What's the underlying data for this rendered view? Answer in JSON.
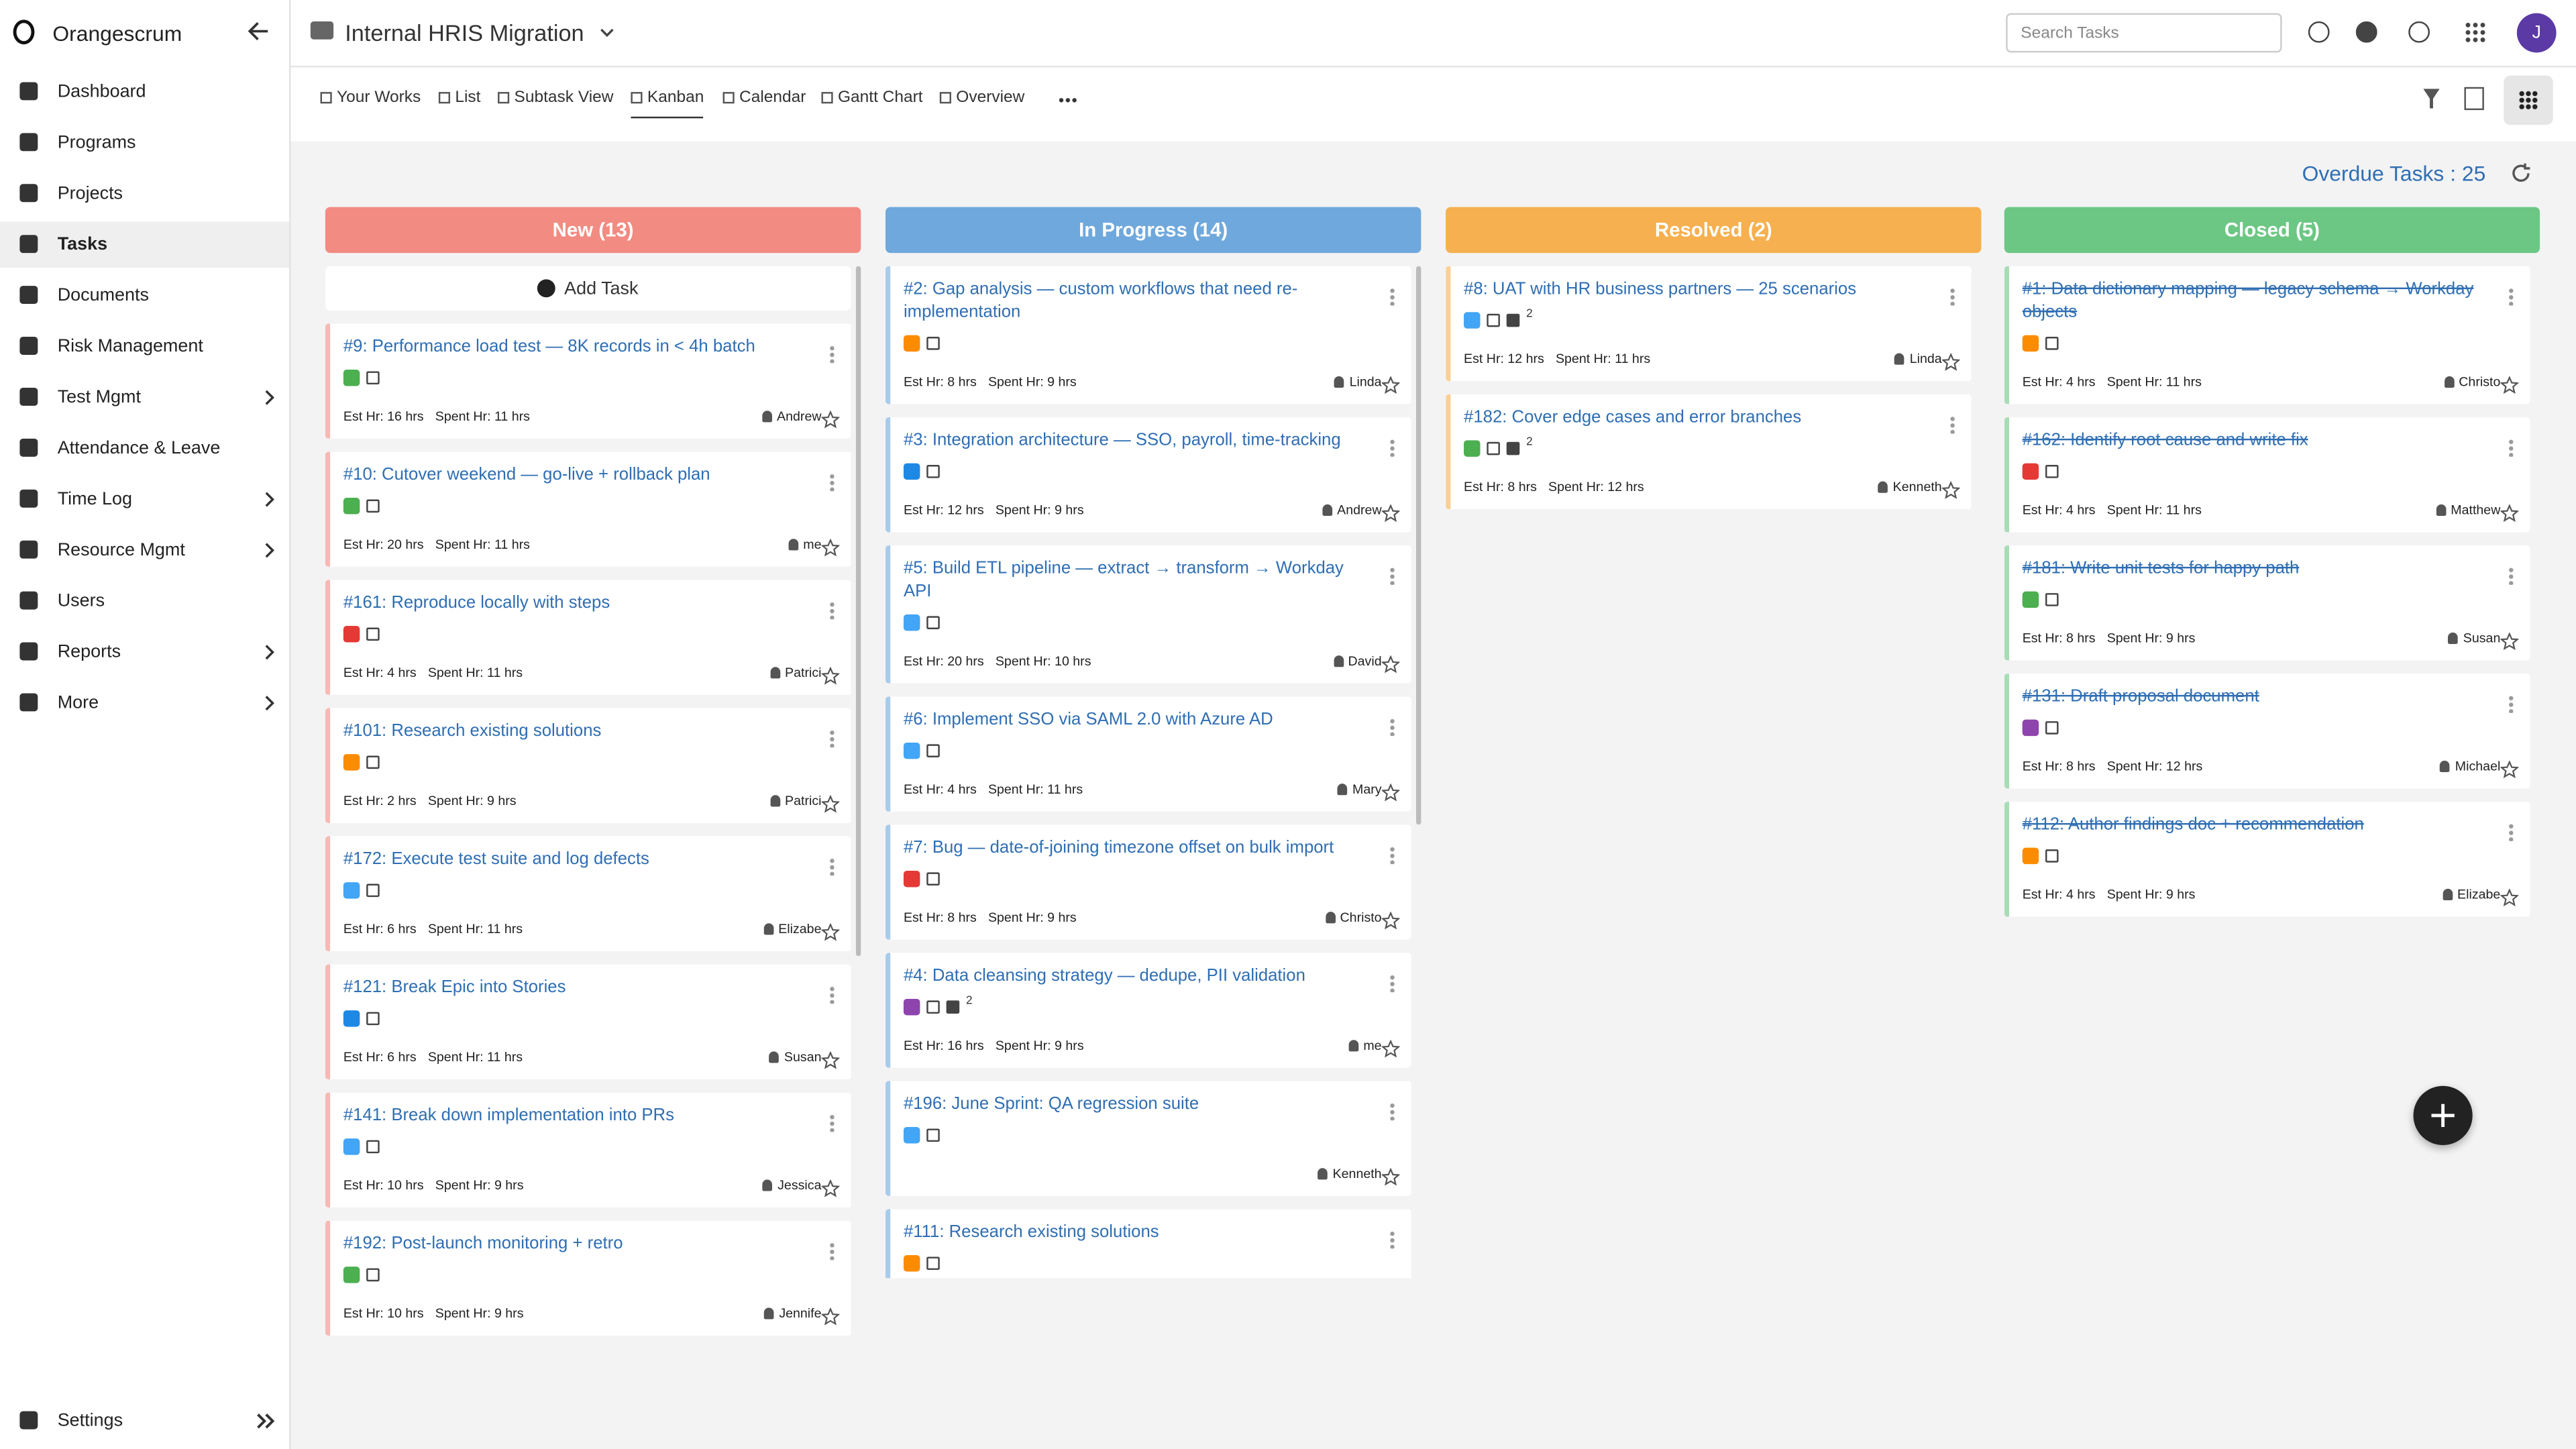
{
  "app": {
    "brand": "Orangescrum",
    "avatar": "J"
  },
  "sidebar": {
    "items": [
      {
        "label": "Dashboard",
        "sub": false,
        "active": false
      },
      {
        "label": "Programs",
        "sub": false,
        "active": false
      },
      {
        "label": "Projects",
        "sub": false,
        "active": false
      },
      {
        "label": "Tasks",
        "sub": false,
        "active": true
      },
      {
        "label": "Documents",
        "sub": false,
        "active": false
      },
      {
        "label": "Risk Management",
        "sub": false,
        "active": false
      },
      {
        "label": "Test Mgmt",
        "sub": true,
        "active": false
      },
      {
        "label": "Attendance & Leave",
        "sub": false,
        "active": false
      },
      {
        "label": "Time Log",
        "sub": true,
        "active": false
      },
      {
        "label": "Resource Mgmt",
        "sub": true,
        "active": false
      },
      {
        "label": "Users",
        "sub": false,
        "active": false
      },
      {
        "label": "Reports",
        "sub": true,
        "active": false
      },
      {
        "label": "More",
        "sub": true,
        "active": false
      }
    ],
    "settings": "Settings"
  },
  "header": {
    "project": "Internal HRIS Migration",
    "search_placeholder": "Search Tasks"
  },
  "tabs": [
    {
      "label": "Your Works",
      "active": false
    },
    {
      "label": "List",
      "active": false
    },
    {
      "label": "Subtask View",
      "active": false
    },
    {
      "label": "Kanban",
      "active": true
    },
    {
      "label": "Calendar",
      "active": false
    },
    {
      "label": "Gantt Chart",
      "active": false
    },
    {
      "label": "Overview",
      "active": false
    }
  ],
  "overdue": "Overdue Tasks : 25",
  "add_task": "Add Task",
  "columns": [
    {
      "title": "New (13)",
      "color": "#f28b82",
      "strike": false,
      "cards": [
        {
          "title": "#9: Performance load test — 8K records in < 4h batch",
          "icon": "#4caf50",
          "est": "Est Hr: 16 hrs",
          "spent": "Spent Hr: 11 hrs",
          "user": "Andrew"
        },
        {
          "title": "#10: Cutover weekend — go-live + rollback plan",
          "icon": "#4caf50",
          "est": "Est Hr: 20 hrs",
          "spent": "Spent Hr: 11 hrs",
          "user": "me"
        },
        {
          "title": "#161: Reproduce locally with steps",
          "icon": "#e53935",
          "est": "Est Hr: 4 hrs",
          "spent": "Spent Hr: 11 hrs",
          "user": "Patrici"
        },
        {
          "title": "#101: Research existing solutions",
          "icon": "#fb8c00",
          "est": "Est Hr: 2 hrs",
          "spent": "Spent Hr: 9 hrs",
          "user": "Patrici"
        },
        {
          "title": "#172: Execute test suite and log defects",
          "icon": "#42a5f5",
          "est": "Est Hr: 6 hrs",
          "spent": "Spent Hr: 11 hrs",
          "user": "Elizabe"
        },
        {
          "title": "#121: Break Epic into Stories",
          "icon": "#1e88e5",
          "est": "Est Hr: 6 hrs",
          "spent": "Spent Hr: 11 hrs",
          "user": "Susan"
        },
        {
          "title": "#141: Break down implementation into PRs",
          "icon": "#42a5f5",
          "est": "Est Hr: 10 hrs",
          "spent": "Spent Hr: 9 hrs",
          "user": "Jessica"
        },
        {
          "title": "#192: Post-launch monitoring + retro",
          "icon": "#4caf50",
          "est": "Est Hr: 10 hrs",
          "spent": "Spent Hr: 9 hrs",
          "user": "Jennife"
        }
      ]
    },
    {
      "title": "In Progress (14)",
      "color": "#6fa8dc",
      "strike": false,
      "cards": [
        {
          "title": "#2: Gap analysis — custom workflows that need re-implementation",
          "icon": "#fb8c00",
          "est": "Est Hr: 8 hrs",
          "spent": "Spent Hr: 9 hrs",
          "user": "Linda"
        },
        {
          "title": "#3: Integration architecture — SSO, payroll, time-tracking",
          "icon": "#1e88e5",
          "est": "Est Hr: 12 hrs",
          "spent": "Spent Hr: 9 hrs",
          "user": "Andrew"
        },
        {
          "title": "#5: Build ETL pipeline — extract → transform → Workday API",
          "icon": "#42a5f5",
          "est": "Est Hr: 20 hrs",
          "spent": "Spent Hr: 10 hrs",
          "user": "David"
        },
        {
          "title": "#6: Implement SSO via SAML 2.0 with Azure AD",
          "icon": "#42a5f5",
          "est": "Est Hr: 4 hrs",
          "spent": "Spent Hr: 11 hrs",
          "user": "Mary"
        },
        {
          "title": "#7: Bug — date-of-joining timezone offset on bulk import",
          "icon": "#e53935",
          "est": "Est Hr: 8 hrs",
          "spent": "Spent Hr: 9 hrs",
          "user": "Christo"
        },
        {
          "title": "#4: Data cleansing strategy — dedupe, PII validation",
          "icon": "#8e44ad",
          "comments": 2,
          "est": "Est Hr: 16 hrs",
          "spent": "Spent Hr: 9 hrs",
          "user": "me"
        },
        {
          "title": "#196: June Sprint: QA regression suite",
          "icon": "#42a5f5",
          "user": "Kenneth"
        },
        {
          "title": "#111: Research existing solutions",
          "icon": "#fb8c00"
        }
      ]
    },
    {
      "title": "Resolved (2)",
      "color": "#f6b04f",
      "strike": false,
      "cards": [
        {
          "title": "#8: UAT with HR business partners — 25 scenarios",
          "icon": "#42a5f5",
          "comments": 2,
          "est": "Est Hr: 12 hrs",
          "spent": "Spent Hr: 11 hrs",
          "user": "Linda"
        },
        {
          "title": "#182: Cover edge cases and error branches",
          "icon": "#4caf50",
          "comments": 2,
          "est": "Est Hr: 8 hrs",
          "spent": "Spent Hr: 12 hrs",
          "user": "Kenneth"
        }
      ]
    },
    {
      "title": "Closed (5)",
      "color": "#6cc784",
      "strike": true,
      "cards": [
        {
          "title": "#1: Data dictionary mapping — legacy schema → Workday objects",
          "icon": "#fb8c00",
          "est": "Est Hr: 4 hrs",
          "spent": "Spent Hr: 11 hrs",
          "user": "Christo"
        },
        {
          "title": "#162: Identify root cause and write fix",
          "icon": "#e53935",
          "est": "Est Hr: 4 hrs",
          "spent": "Spent Hr: 11 hrs",
          "user": "Matthew"
        },
        {
          "title": "#181: Write unit tests for happy path",
          "icon": "#4caf50",
          "est": "Est Hr: 8 hrs",
          "spent": "Spent Hr: 9 hrs",
          "user": "Susan"
        },
        {
          "title": "#131: Draft proposal document",
          "icon": "#8e44ad",
          "est": "Est Hr: 8 hrs",
          "spent": "Spent Hr: 12 hrs",
          "user": "Michael"
        },
        {
          "title": "#112: Author findings doc + recommendation",
          "icon": "#fb8c00",
          "est": "Est Hr: 4 hrs",
          "spent": "Spent Hr: 9 hrs",
          "user": "Elizabe"
        }
      ]
    }
  ]
}
